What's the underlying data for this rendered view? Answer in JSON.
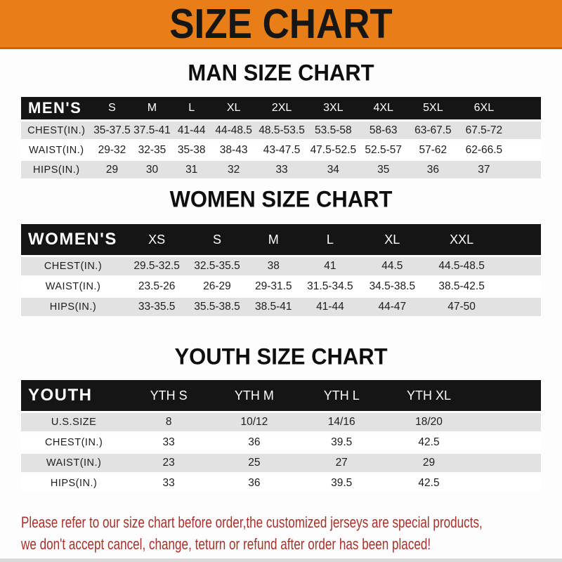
{
  "banner": {
    "title": "SIZE CHART",
    "bg_color": "#E87E17"
  },
  "sections": [
    {
      "heading": "MAN SIZE CHART",
      "table": {
        "label": "MEN'S",
        "columns": [
          "S",
          "M",
          "L",
          "XL",
          "2XL",
          "3XL",
          "4XL",
          "5XL",
          "6XL"
        ],
        "rows": [
          {
            "label": "CHEST(IN.)",
            "values": [
              "35-37.5",
              "37.5-41",
              "41-44",
              "44-48.5",
              "48.5-53.5",
              "53.5-58",
              "58-63",
              "63-67.5",
              "67.5-72"
            ]
          },
          {
            "label": "WAIST(IN.)",
            "values": [
              "29-32",
              "32-35",
              "35-38",
              "38-43",
              "43-47.5",
              "47.5-52.5",
              "52.5-57",
              "57-62",
              "62-66.5"
            ]
          },
          {
            "label": "HIPS(IN.)",
            "values": [
              "29",
              "30",
              "31",
              "32",
              "33",
              "34",
              "35",
              "36",
              "37"
            ]
          }
        ]
      }
    },
    {
      "heading": "WOMEN SIZE CHART",
      "table": {
        "label": "WOMEN'S",
        "columns": [
          "XS",
          "S",
          "M",
          "L",
          "XL",
          "XXL"
        ],
        "rows": [
          {
            "label": "CHEST(IN.)",
            "values": [
              "29.5-32.5",
              "32.5-35.5",
              "38",
              "41",
              "44.5",
              "44.5-48.5"
            ]
          },
          {
            "label": "WAIST(IN.)",
            "values": [
              "23.5-26",
              "26-29",
              "29-31.5",
              "31.5-34.5",
              "34.5-38.5",
              "38.5-42.5"
            ]
          },
          {
            "label": "HIPS(IN.)",
            "values": [
              "33-35.5",
              "35.5-38.5",
              "38.5-41",
              "41-44",
              "44-47",
              "47-50"
            ]
          }
        ]
      }
    },
    {
      "heading": "YOUTH SIZE CHART",
      "table": {
        "label": "YOUTH",
        "columns": [
          "YTH S",
          "YTH M",
          "YTH L",
          "YTH XL"
        ],
        "rows": [
          {
            "label": "U.S.SIZE",
            "values": [
              "8",
              "10/12",
              "14/16",
              "18/20"
            ]
          },
          {
            "label": "CHEST(IN.)",
            "values": [
              "33",
              "36",
              "39.5",
              "42.5"
            ]
          },
          {
            "label": "WAIST(IN.)",
            "values": [
              "23",
              "25",
              "27",
              "29"
            ]
          },
          {
            "label": "HIPS(IN.)",
            "values": [
              "33",
              "36",
              "39.5",
              "42.5"
            ]
          }
        ]
      }
    }
  ],
  "footer": {
    "lines": [
      "Please refer to our size chart before order,the customized jerseys are special products,",
      "we don't accept cancel, change, teturn or refund after order has been placed!"
    ],
    "text_color": "#A5322B"
  },
  "colors": {
    "banner_orange": "#E87E17",
    "banner_border": "#C8660D",
    "header_bar_black": "#151515",
    "row_stripe_gray": "#E2E2E2",
    "heading_text": "#0E0E0E"
  }
}
